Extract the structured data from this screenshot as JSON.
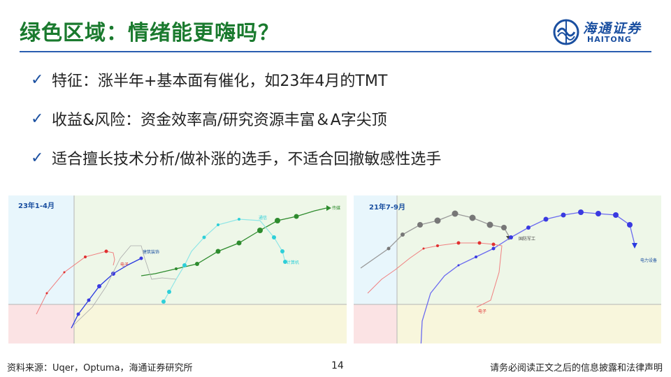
{
  "title": "绿色区域：情绪能更嗨吗？",
  "logo": {
    "cn": "海通证券",
    "en": "HAITONG",
    "icon": "haitong-logo-icon"
  },
  "bullets": [
    {
      "icon": "check-icon",
      "text": "特征：涨半年+基本面有催化，如23年4月的TMT"
    },
    {
      "icon": "check-icon",
      "text": "收益&风险：资金效率高/研究资源丰富＆A字尖顶"
    },
    {
      "icon": "check-icon",
      "text": "适合擅长技术分析/做补涨的选手，不适合回撤敏感性选手"
    }
  ],
  "chart1": {
    "period": "23年1-4月",
    "labels": {
      "media": "传媒",
      "comm": "通信",
      "computer": "计算机",
      "building": "建筑装饰",
      "electronics": "电子"
    }
  },
  "chart2": {
    "period": "21年7-9月",
    "labels": {
      "defense": "国防军工",
      "power": "电力设备",
      "electronics": "电子"
    }
  },
  "colors": {
    "title": "#1a7a2e",
    "brand": "#1a4fa0",
    "green_zone": "#eef7e8",
    "blue_zone": "#e8f6fc",
    "yellow_zone": "#f8f6dc",
    "red_zone": "#fbe3e4"
  },
  "footer": {
    "source": "资料来源：Uqer，Optuma，海通证券研究所",
    "page": "14",
    "disclaimer": "请务必阅读正文之后的信息披露和法律声明"
  }
}
